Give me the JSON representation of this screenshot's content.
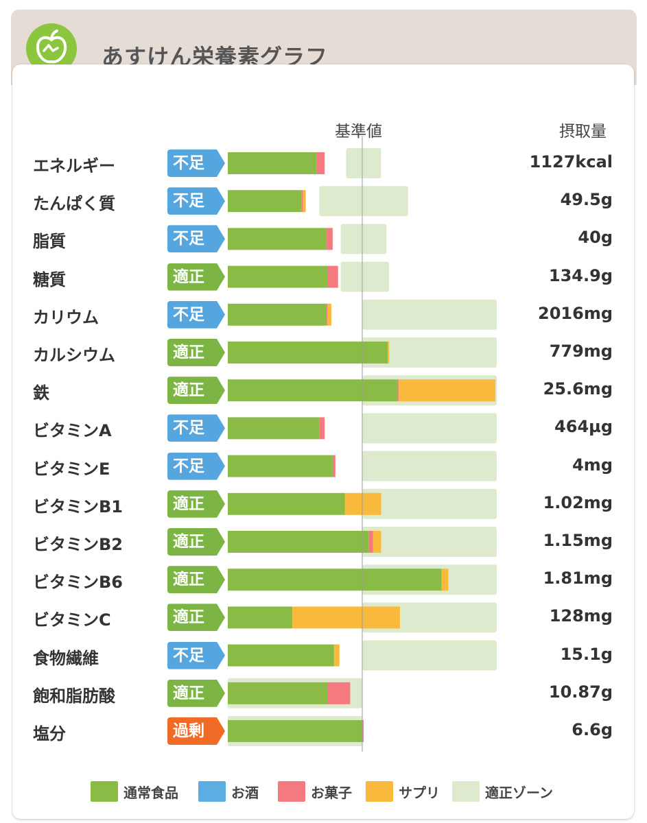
{
  "app": {
    "title": "あすけん栄養素グラフ",
    "logo": "apple-logo"
  },
  "header": {
    "baseline_label": "基準値",
    "intake_label": "摂取量"
  },
  "colors": {
    "normal_food": "#8bbb47",
    "alcohol": "#5aaee2",
    "snack": "#f47a80",
    "supplement": "#f9b93d",
    "zone": "#ddeacd",
    "status_fusoku": "#55a6df",
    "status_tekisei": "#7cb544",
    "status_kajou": "#ef6b26"
  },
  "chart_data": {
    "type": "bar",
    "stacked": true,
    "title": "あすけん栄養素グラフ",
    "reference_label": "基準値",
    "intake_header": "摂取量",
    "unit": "% of 基準値",
    "xlim": [
      0,
      200
    ],
    "categories": [
      "エネルギー",
      "たんぱく質",
      "脂質",
      "糖質",
      "カリウム",
      "カルシウム",
      "鉄",
      "ビタミンA",
      "ビタミンE",
      "ビタミンB1",
      "ビタミンB2",
      "ビタミンB6",
      "ビタミンC",
      "食物繊維",
      "飽和脂肪酸",
      "塩分"
    ],
    "status": [
      "不足",
      "不足",
      "不足",
      "適正",
      "不足",
      "適正",
      "適正",
      "不足",
      "不足",
      "適正",
      "適正",
      "適正",
      "適正",
      "不足",
      "適正",
      "過剰"
    ],
    "intake": [
      "1127kcal",
      "49.5g",
      "40g",
      "134.9g",
      "2016mg",
      "779mg",
      "25.6mg",
      "464µg",
      "4mg",
      "1.02mg",
      "1.15mg",
      "1.81mg",
      "128mg",
      "15.1g",
      "10.87g",
      "6.6g"
    ],
    "series": [
      {
        "name": "通常食品",
        "values": [
          66,
          55,
          73,
          74,
          73,
          119,
          126,
          68,
          78,
          87,
          105,
          159,
          48,
          79,
          74,
          100
        ]
      },
      {
        "name": "お酒",
        "values": [
          0,
          0,
          0,
          0,
          0,
          0,
          0,
          0,
          0,
          0,
          0,
          0,
          0,
          0,
          0,
          0
        ]
      },
      {
        "name": "お菓子",
        "values": [
          6,
          1,
          5,
          8,
          1,
          0,
          1,
          4,
          2,
          0,
          3,
          0,
          0,
          0,
          17,
          1
        ]
      },
      {
        "name": "サプリ",
        "values": [
          0,
          2,
          0,
          0,
          3,
          1,
          72,
          0,
          0,
          27,
          6,
          5,
          80,
          4,
          0,
          0
        ]
      }
    ],
    "zones": [
      [
        88,
        114
      ],
      [
        68,
        134
      ],
      [
        84,
        118
      ],
      [
        84,
        120
      ],
      [
        100,
        200
      ],
      [
        100,
        200
      ],
      [
        100,
        200
      ],
      [
        100,
        200
      ],
      [
        100,
        200
      ],
      [
        100,
        200
      ],
      [
        100,
        200
      ],
      [
        100,
        200
      ],
      [
        100,
        200
      ],
      [
        100,
        200
      ],
      [
        0,
        100
      ],
      [
        0,
        100
      ]
    ],
    "legend": [
      "通常食品",
      "お酒",
      "お菓子",
      "サプリ",
      "適正ゾーン"
    ]
  }
}
